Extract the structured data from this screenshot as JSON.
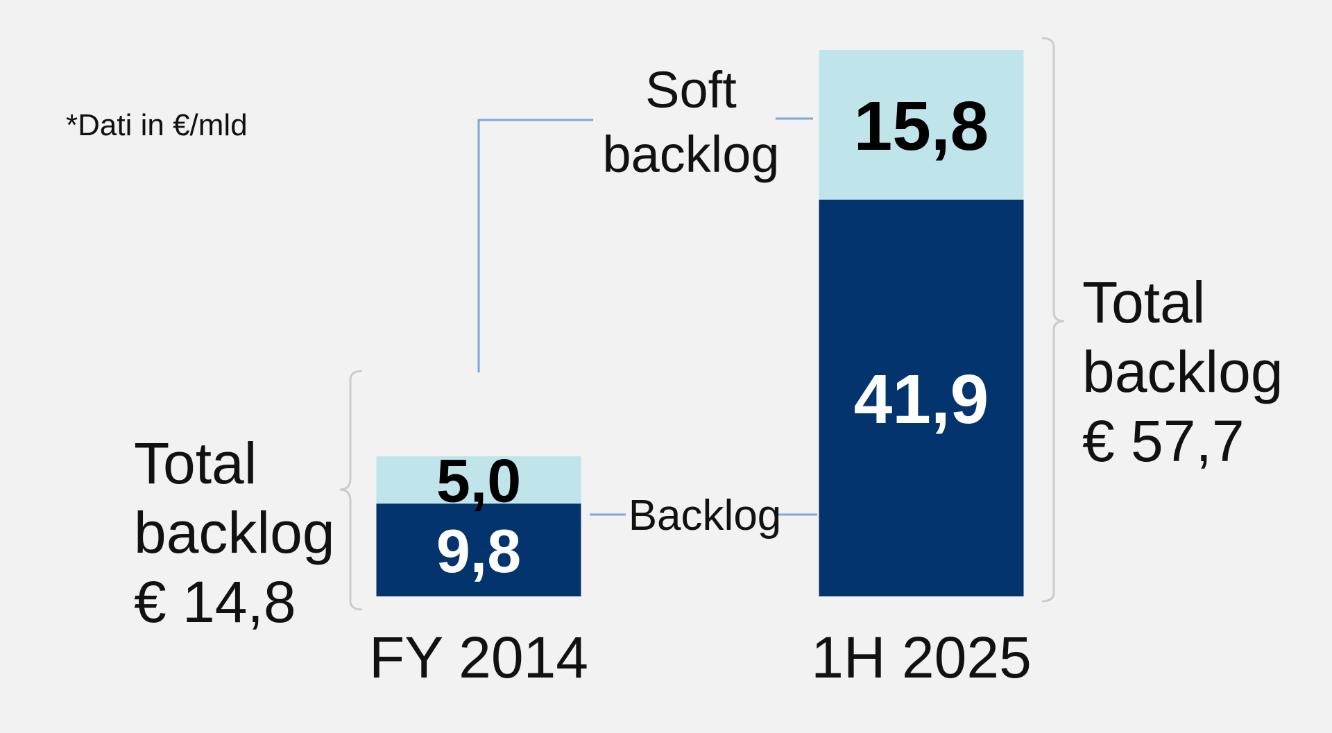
{
  "note": "*Dati in €/mld",
  "chart_data": {
    "type": "bar",
    "stacked": true,
    "categories": [
      "FY 2014",
      "1H 2025"
    ],
    "series": [
      {
        "name": "Backlog",
        "values": [
          9.8,
          41.9
        ],
        "labels": [
          "9,8",
          "41,9"
        ],
        "color": "#03346e",
        "label_color": "#ffffff"
      },
      {
        "name": "Soft backlog",
        "values": [
          5.0,
          15.8
        ],
        "labels": [
          "5,0",
          "15,8"
        ],
        "color": "#bfe5ea",
        "label_color": "#000000"
      }
    ],
    "ylim": [
      0,
      57.7
    ],
    "grid": false,
    "totals": [
      {
        "category": "FY 2014",
        "value": 14.8,
        "lines": [
          "Total",
          "backlog",
          "€ 14,8"
        ]
      },
      {
        "category": "1H 2025",
        "value": 57.7,
        "lines": [
          "Total",
          "backlog",
          "€ 57,7"
        ]
      }
    ],
    "series_labels": {
      "soft_backlog": [
        "Soft",
        "backlog"
      ],
      "backlog": "Backlog"
    }
  },
  "colors": {
    "background": "#f2f2f2",
    "connector": "#7ea6d6",
    "bracket": "#cccccc",
    "text": "#111111"
  }
}
